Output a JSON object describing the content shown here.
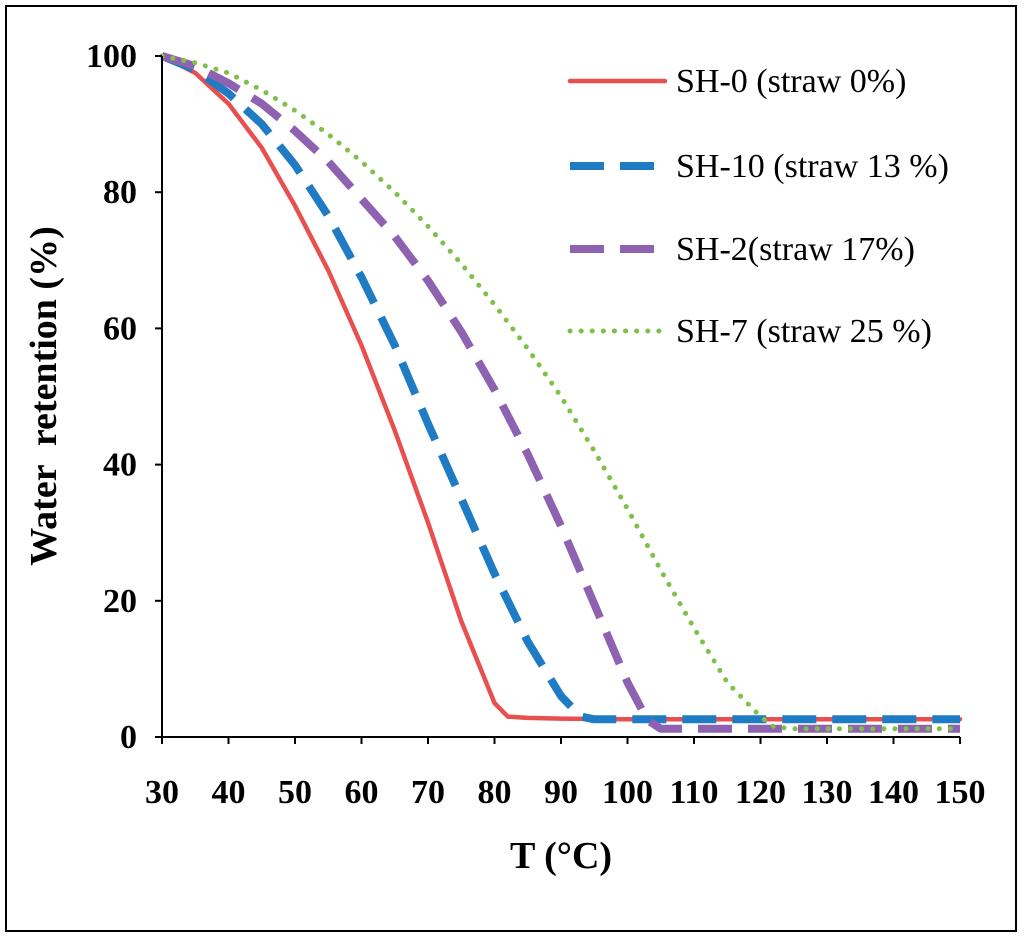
{
  "chart_data": {
    "type": "line",
    "title": "",
    "xlabel": "T (°C)",
    "ylabel": "Water  retention (%)",
    "xlim": [
      30,
      150
    ],
    "ylim": [
      0,
      100
    ],
    "x_ticks": [
      30,
      40,
      50,
      60,
      70,
      80,
      90,
      100,
      110,
      120,
      130,
      140,
      150
    ],
    "x_tick_labels": [
      "30",
      "40",
      "50",
      "60",
      "70",
      "80",
      "90",
      "100",
      "110",
      "120",
      "130",
      "140",
      "150"
    ],
    "y_ticks": [
      0,
      20,
      40,
      60,
      80,
      100
    ],
    "y_tick_labels": [
      "0",
      "20",
      "40",
      "60",
      "80",
      "100"
    ],
    "legend_position": "top-right",
    "series": [
      {
        "name": "SH-0 (straw 0%)",
        "color": "#e8504f",
        "style": "solid",
        "x": [
          30,
          35,
          40,
          45,
          50,
          55,
          60,
          65,
          70,
          75,
          80,
          82,
          85,
          90,
          100,
          110,
          120,
          130,
          140,
          150
        ],
        "y": [
          100,
          97.5,
          93,
          86.5,
          78,
          68.5,
          57.5,
          45,
          31.5,
          17,
          5,
          3,
          2.8,
          2.7,
          2.6,
          2.6,
          2.6,
          2.6,
          2.6,
          2.6
        ]
      },
      {
        "name": "SH-10 (straw 13 %)",
        "color": "#1f7bc4",
        "style": "dash",
        "x": [
          30,
          35,
          40,
          45,
          50,
          55,
          60,
          65,
          70,
          75,
          80,
          85,
          90,
          93,
          95,
          100,
          110,
          120,
          130,
          140,
          150
        ],
        "y": [
          100,
          98,
          94.5,
          90,
          84,
          76.5,
          67.5,
          57.5,
          46,
          35,
          24,
          14,
          6,
          3,
          2.6,
          2.6,
          2.6,
          2.6,
          2.6,
          2.6,
          2.6
        ]
      },
      {
        "name": "SH-2(straw 17%)",
        "color": "#8e62b0",
        "style": "dash",
        "x": [
          30,
          35,
          40,
          45,
          50,
          55,
          60,
          65,
          70,
          75,
          80,
          85,
          90,
          95,
          100,
          103,
          105,
          110,
          120,
          130,
          140,
          150
        ],
        "y": [
          100,
          98.5,
          96,
          93,
          89,
          84.5,
          79,
          73.5,
          67,
          59.5,
          51,
          41.5,
          31,
          19.5,
          8,
          2.5,
          1.2,
          1.2,
          1.2,
          1.2,
          1.2,
          1.2
        ]
      },
      {
        "name": "SH-7 (straw 25 %)",
        "color": "#7fbf4a",
        "style": "dot",
        "x": [
          30,
          35,
          40,
          45,
          50,
          55,
          60,
          65,
          70,
          75,
          80,
          85,
          90,
          95,
          100,
          105,
          110,
          115,
          120,
          122,
          125,
          130,
          140,
          150
        ],
        "y": [
          100,
          99,
          97.5,
          95,
          92,
          88.5,
          84.5,
          80,
          75,
          69.5,
          63.5,
          57,
          50,
          42,
          33.5,
          24.5,
          16,
          8,
          3,
          1.5,
          1.2,
          1.2,
          1.2,
          1.2
        ]
      }
    ]
  }
}
